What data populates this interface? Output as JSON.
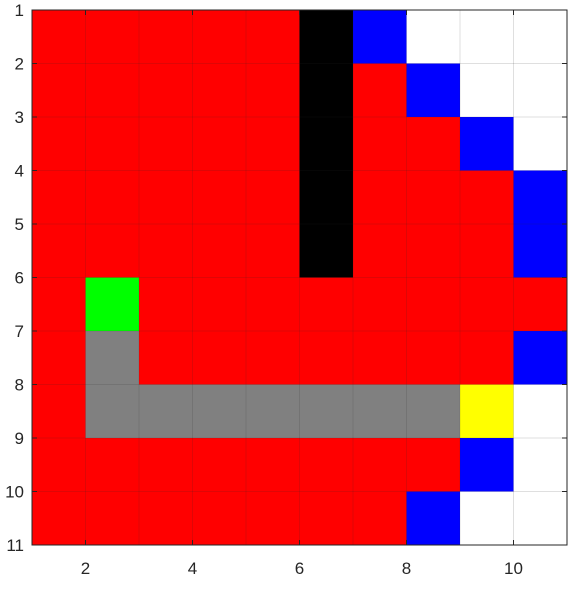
{
  "chart_data": {
    "type": "heatmap",
    "xlim": [
      1,
      11
    ],
    "ylim": [
      1,
      11
    ],
    "y_direction": "reversed",
    "x_ticks": [
      "2",
      "4",
      "6",
      "8",
      "10"
    ],
    "y_ticks": [
      "1",
      "2",
      "3",
      "4",
      "5",
      "6",
      "7",
      "8",
      "9",
      "10",
      "11"
    ],
    "grid": true,
    "colors": {
      "R": "#ff0000",
      "K": "#000000",
      "B": "#0000ff",
      "W": "#ffffff",
      "G": "#00ff00",
      "A": "#808080",
      "Y": "#ffff00"
    },
    "cells": [
      [
        "R",
        "R",
        "R",
        "R",
        "R",
        "K",
        "B",
        "W",
        "W",
        "W"
      ],
      [
        "R",
        "R",
        "R",
        "R",
        "R",
        "K",
        "R",
        "B",
        "W",
        "W"
      ],
      [
        "R",
        "R",
        "R",
        "R",
        "R",
        "K",
        "R",
        "R",
        "B",
        "W"
      ],
      [
        "R",
        "R",
        "R",
        "R",
        "R",
        "K",
        "R",
        "R",
        "R",
        "B"
      ],
      [
        "R",
        "R",
        "R",
        "R",
        "R",
        "K",
        "R",
        "R",
        "R",
        "B"
      ],
      [
        "R",
        "G",
        "R",
        "R",
        "R",
        "R",
        "R",
        "R",
        "R",
        "R"
      ],
      [
        "R",
        "A",
        "R",
        "R",
        "R",
        "R",
        "R",
        "R",
        "R",
        "B"
      ],
      [
        "R",
        "A",
        "A",
        "A",
        "A",
        "A",
        "A",
        "A",
        "Y",
        "W"
      ],
      [
        "R",
        "R",
        "R",
        "R",
        "R",
        "R",
        "R",
        "R",
        "B",
        "W"
      ],
      [
        "R",
        "R",
        "R",
        "R",
        "R",
        "R",
        "R",
        "B",
        "W",
        "W"
      ]
    ]
  }
}
